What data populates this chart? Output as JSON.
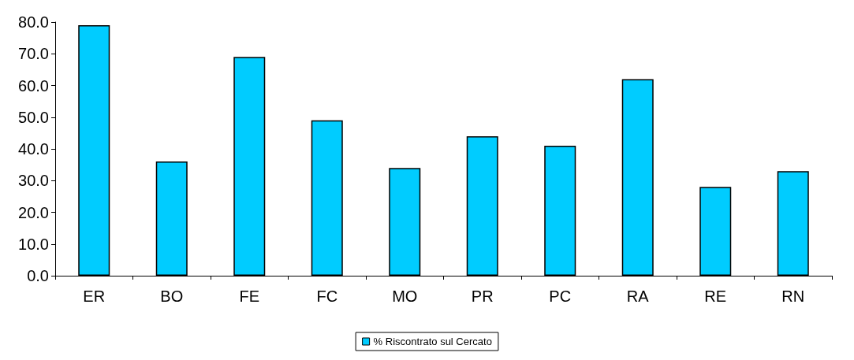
{
  "chart_data": {
    "type": "bar",
    "categories": [
      "ER",
      "BO",
      "FE",
      "FC",
      "MO",
      "PR",
      "PC",
      "RA",
      "RE",
      "RN"
    ],
    "series": [
      {
        "name": "% Riscontrato sul Cercato",
        "color": "#00ccff",
        "values": [
          79,
          36,
          69,
          49,
          34,
          44,
          41,
          62,
          28,
          33
        ]
      }
    ],
    "ylim": [
      0,
      80
    ],
    "yticks": [
      {
        "value": 0,
        "label": "0.0"
      },
      {
        "value": 10,
        "label": "10.0"
      },
      {
        "value": 20,
        "label": "20.0"
      },
      {
        "value": 30,
        "label": "30.0"
      },
      {
        "value": 40,
        "label": "40.0"
      },
      {
        "value": 50,
        "label": "50.0"
      },
      {
        "value": 60,
        "label": "60.0"
      },
      {
        "value": 70,
        "label": "70.0"
      },
      {
        "value": 80,
        "label": "80.0"
      }
    ],
    "grid": false,
    "legend": "bottom"
  }
}
